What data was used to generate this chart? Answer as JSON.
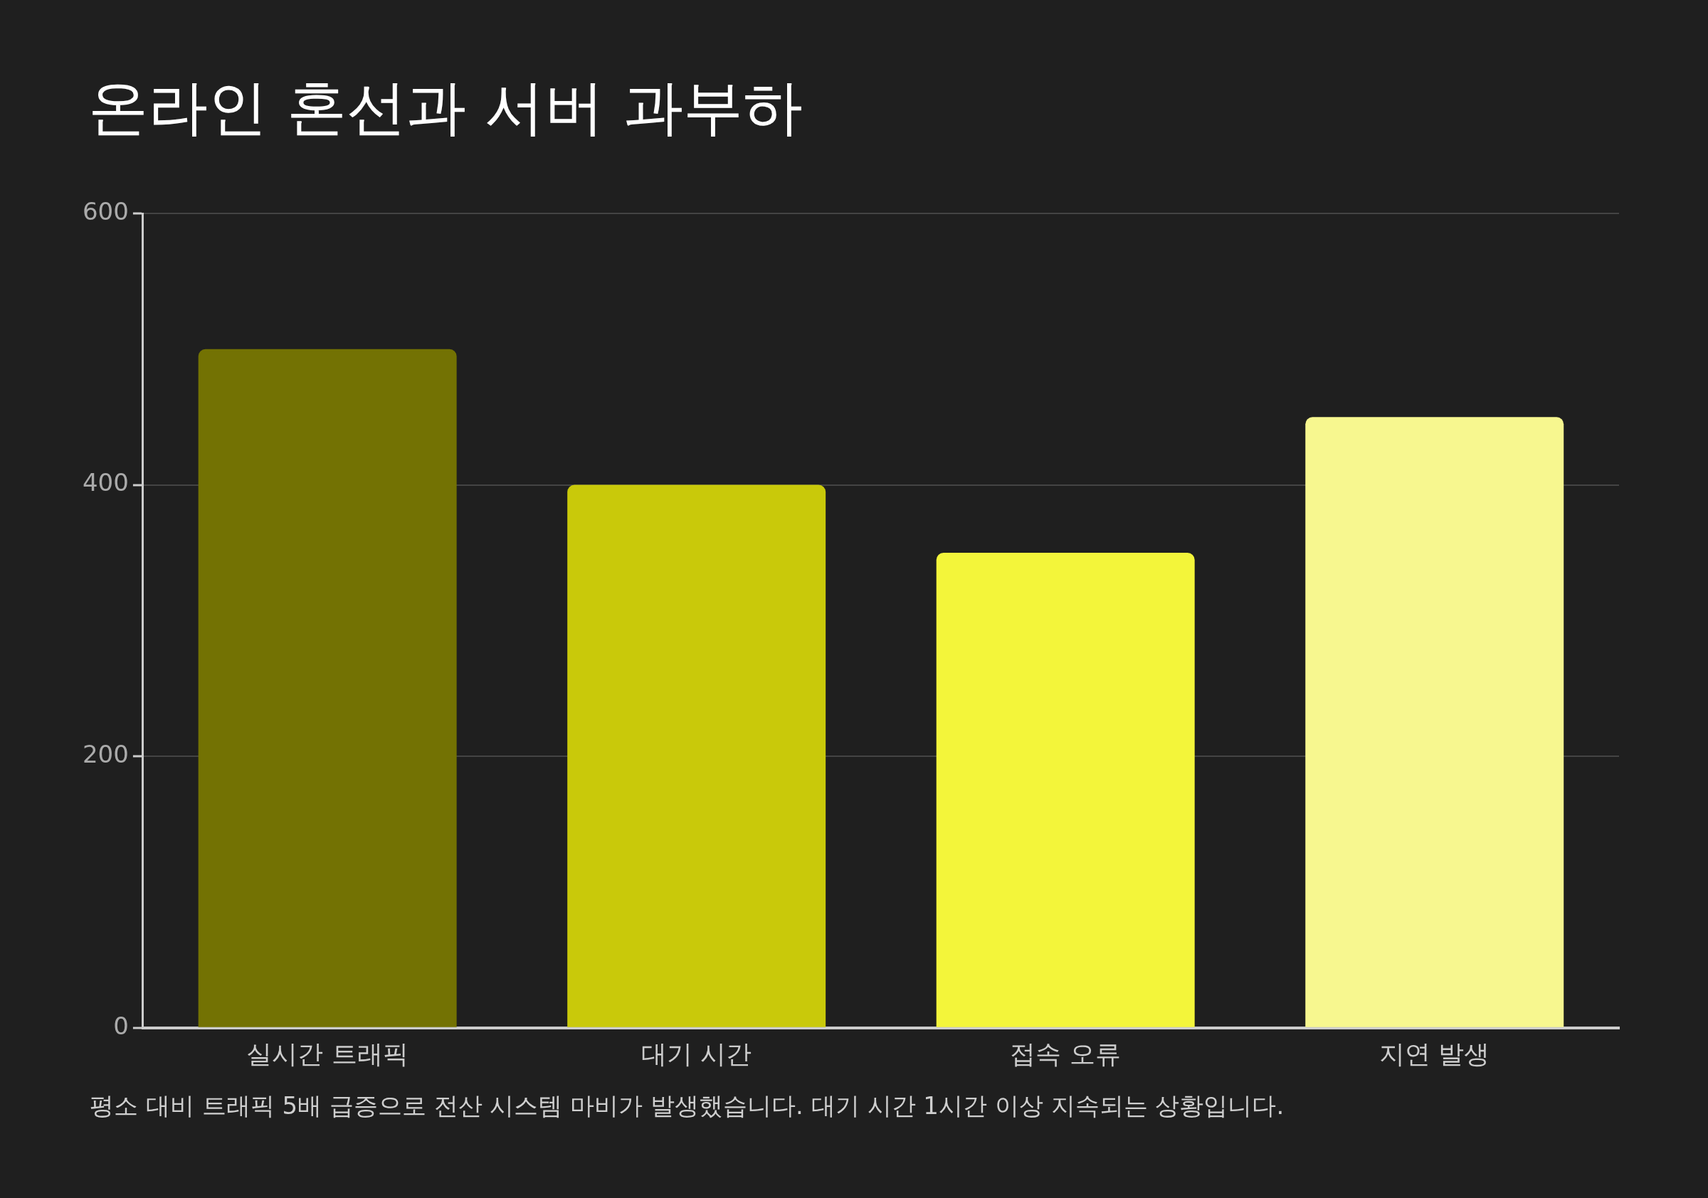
{
  "chart_data": {
    "type": "bar",
    "title": "온라인 혼선과 서버 과부하",
    "categories": [
      "실시간 트래픽",
      "대기 시간",
      "접속 오류",
      "지연 발생"
    ],
    "values": [
      500,
      400,
      350,
      450
    ],
    "colors": [
      "#737203",
      "#c9c90a",
      "#f3f53a",
      "#f7f78f"
    ],
    "ylim": [
      0,
      600
    ],
    "yticks": [
      0,
      200,
      400,
      600
    ],
    "grid": "y",
    "legend": false,
    "annotations": [
      "평소 대비 트래픽 5배 급증으로 전산 시스템 마비가 발생했습니다. 대기 시간 1시간 이상 지속되는 상황입니다."
    ]
  }
}
